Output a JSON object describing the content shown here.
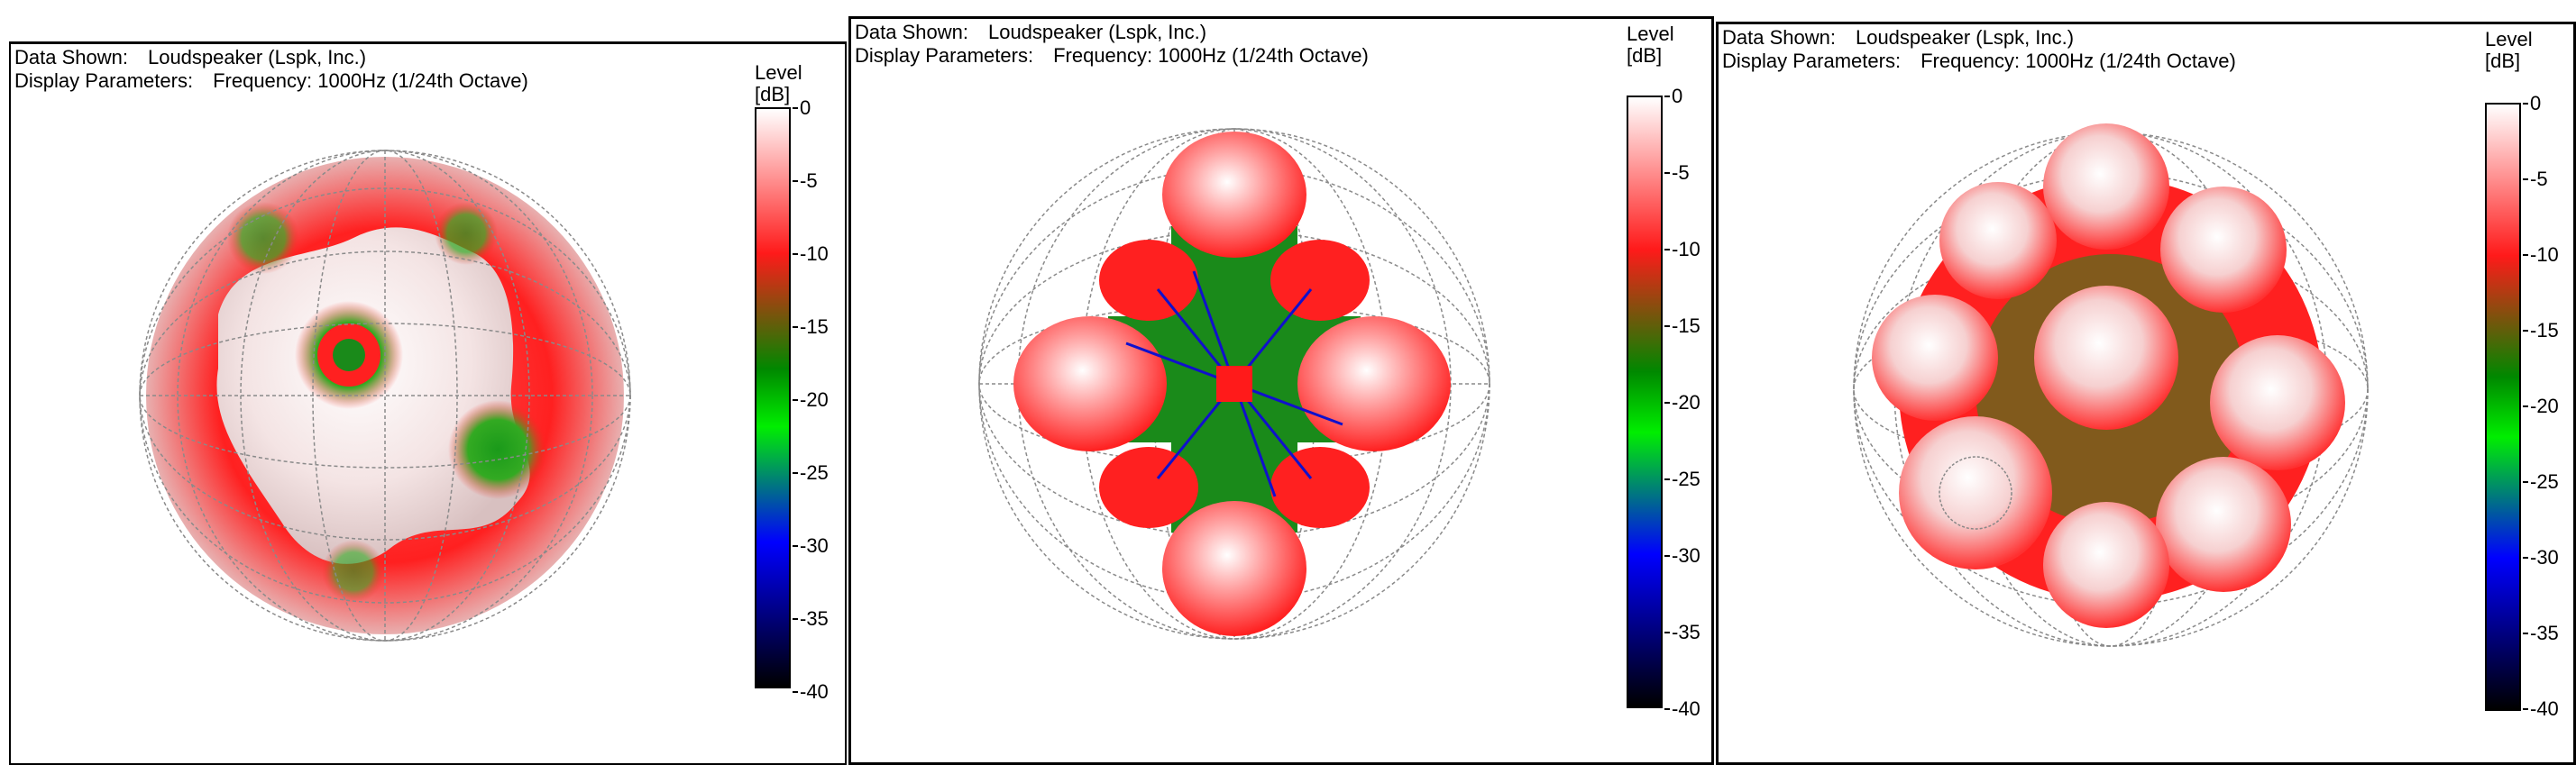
{
  "panels": [
    {
      "data_shown_label": "Data Shown:",
      "data_shown_value": "Loudspeaker (Lspk, Inc.)",
      "display_params_label": "Display Parameters:",
      "display_params_value": "Frequency: 1000Hz (1/24th Octave)",
      "colorbar_title": "Level",
      "colorbar_unit": "[dB]",
      "pattern": "dodecahedral-faces"
    },
    {
      "data_shown_label": "Data Shown:",
      "data_shown_value": "Loudspeaker (Lspk, Inc.)",
      "display_params_label": "Display Parameters:",
      "display_params_value": "Frequency: 1000Hz (1/24th Octave)",
      "colorbar_title": "Level",
      "colorbar_unit": "[dB]",
      "pattern": "four-lobe-cross"
    },
    {
      "data_shown_label": "Data Shown:",
      "data_shown_value": "Loudspeaker (Lspk, Inc.)",
      "display_params_label": "Display Parameters:",
      "display_params_value": "Frequency: 1000Hz (1/24th Octave)",
      "colorbar_title": "Level",
      "colorbar_unit": "[dB]",
      "pattern": "many-lobes"
    }
  ],
  "colorbar_ticks": [
    "0",
    "-5",
    "-10",
    "-15",
    "-20",
    "-25",
    "-30",
    "-35",
    "-40"
  ],
  "colorbar_range_db": [
    -40,
    0
  ],
  "colors": {
    "white": "#ffffff",
    "red": "#ff1a1a",
    "green": "#00cc00",
    "blue": "#0000ff",
    "black": "#000000",
    "grid": "#8a8a8a"
  }
}
